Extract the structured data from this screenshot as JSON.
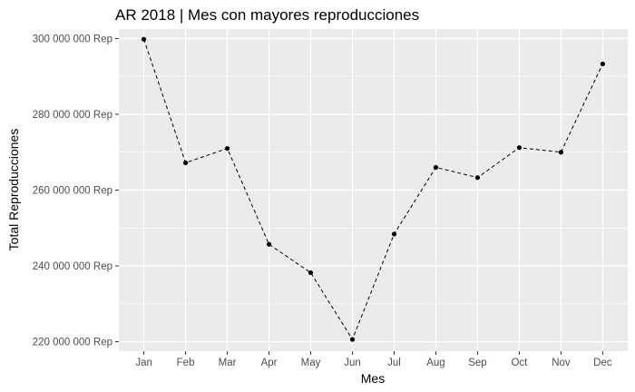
{
  "chart_data": {
    "type": "line",
    "title": "AR 2018 | Mes con mayores reproducciones",
    "xlabel": "Mes",
    "ylabel": "Total Reproducciones",
    "categories": [
      "Jan",
      "Feb",
      "Mar",
      "Apr",
      "May",
      "Jun",
      "Jul",
      "Aug",
      "Sep",
      "Oct",
      "Nov",
      "Dec"
    ],
    "series": [
      {
        "values": [
          299800000,
          267200000,
          271000000,
          245700000,
          238200000,
          220600000,
          248400000,
          266000000,
          263300000,
          271200000,
          270000000,
          293300000
        ]
      }
    ],
    "ylim": [
      217500000,
      302500000
    ],
    "yticks": [
      220000000,
      240000000,
      260000000,
      280000000,
      300000000
    ],
    "ytick_labels": [
      "220 000 000 Rep",
      "240 000 000 Rep",
      "260 000 000 Rep",
      "280 000 000 Rep",
      "300 000 000 Rep"
    ],
    "grid": true,
    "line_style": "dashed",
    "colors": {
      "panel": "#ebebeb",
      "grid": "#ffffff",
      "line": "#000000",
      "tick_text": "#4d4d4d"
    }
  }
}
